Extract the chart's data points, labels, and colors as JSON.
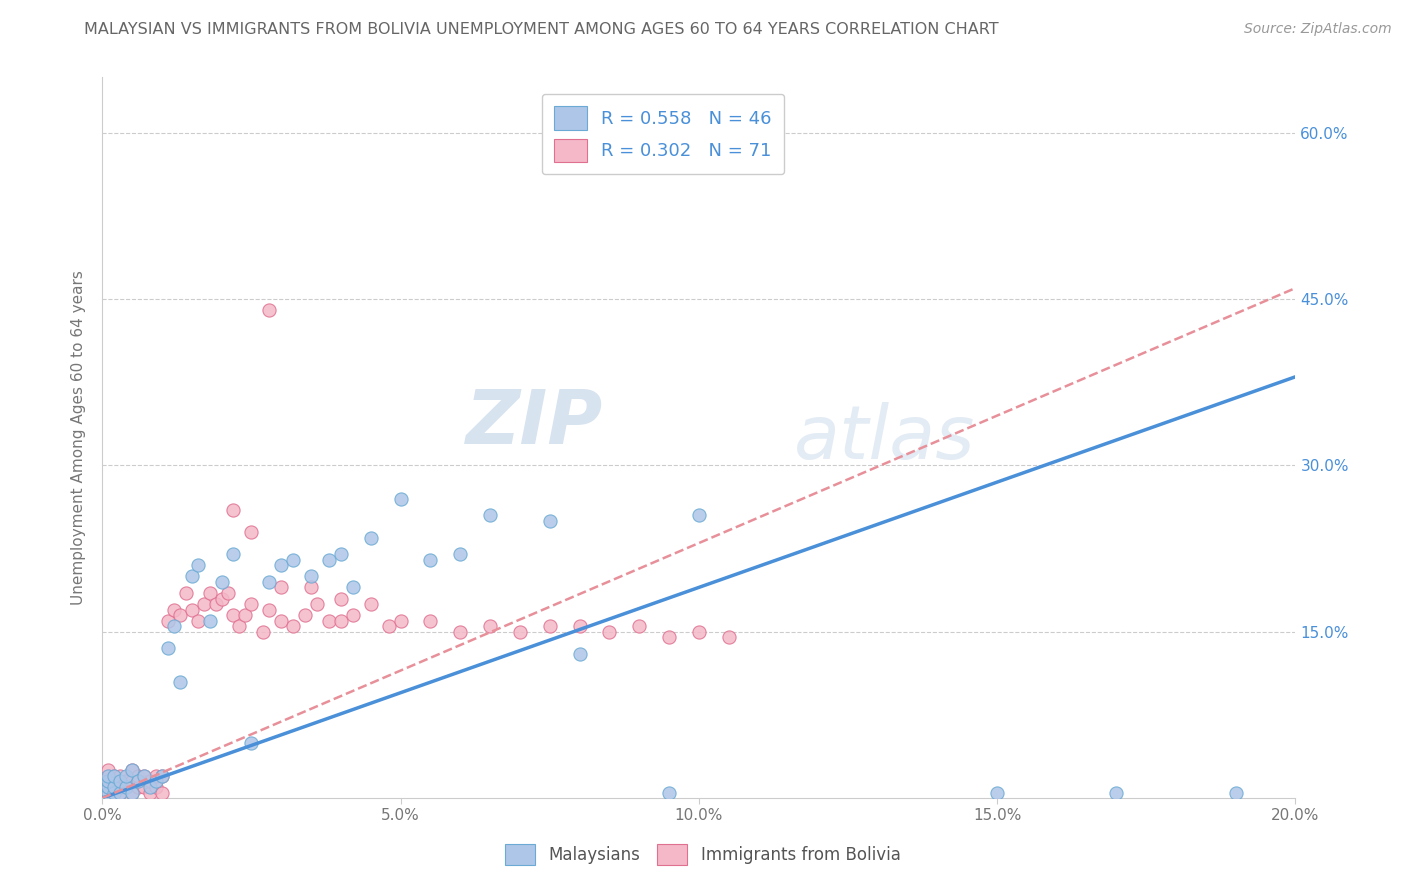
{
  "title": "MALAYSIAN VS IMMIGRANTS FROM BOLIVIA UNEMPLOYMENT AMONG AGES 60 TO 64 YEARS CORRELATION CHART",
  "source": "Source: ZipAtlas.com",
  "ylabel": "Unemployment Among Ages 60 to 64 years",
  "xlim": [
    0.0,
    0.2
  ],
  "ylim": [
    0.0,
    0.65
  ],
  "xticks": [
    0.0,
    0.05,
    0.1,
    0.15,
    0.2
  ],
  "xtick_labels": [
    "0.0%",
    "5.0%",
    "10.0%",
    "15.0%",
    "20.0%"
  ],
  "ytick_labels_right": [
    "15.0%",
    "30.0%",
    "45.0%",
    "60.0%"
  ],
  "yticks_right": [
    0.15,
    0.3,
    0.45,
    0.6
  ],
  "blue_color": "#aec6e8",
  "pink_color": "#f4b8c8",
  "blue_edge_color": "#6aaad4",
  "pink_edge_color": "#e07090",
  "blue_line_color": "#4a90d9",
  "pink_line_color": "#e8909a",
  "legend_text_color": "#4a90d9",
  "grid_color": "#cccccc",
  "title_color": "#666666",
  "watermark_color": "#c8d8ea",
  "blue_scatter_x": [
    0.001,
    0.001,
    0.001,
    0.001,
    0.002,
    0.002,
    0.002,
    0.003,
    0.003,
    0.004,
    0.004,
    0.005,
    0.005,
    0.006,
    0.007,
    0.008,
    0.009,
    0.01,
    0.011,
    0.012,
    0.013,
    0.015,
    0.016,
    0.018,
    0.02,
    0.022,
    0.025,
    0.028,
    0.03,
    0.032,
    0.035,
    0.038,
    0.04,
    0.042,
    0.045,
    0.05,
    0.055,
    0.06,
    0.065,
    0.075,
    0.08,
    0.095,
    0.1,
    0.15,
    0.17,
    0.19
  ],
  "blue_scatter_y": [
    0.005,
    0.01,
    0.015,
    0.02,
    0.005,
    0.01,
    0.02,
    0.005,
    0.015,
    0.01,
    0.02,
    0.005,
    0.025,
    0.015,
    0.02,
    0.01,
    0.015,
    0.02,
    0.135,
    0.155,
    0.105,
    0.2,
    0.21,
    0.16,
    0.195,
    0.22,
    0.05,
    0.195,
    0.21,
    0.215,
    0.2,
    0.215,
    0.22,
    0.19,
    0.235,
    0.27,
    0.215,
    0.22,
    0.255,
    0.25,
    0.13,
    0.005,
    0.255,
    0.005,
    0.005,
    0.005
  ],
  "pink_scatter_x": [
    0.001,
    0.001,
    0.001,
    0.001,
    0.001,
    0.002,
    0.002,
    0.002,
    0.002,
    0.003,
    0.003,
    0.003,
    0.004,
    0.004,
    0.005,
    0.005,
    0.005,
    0.006,
    0.006,
    0.007,
    0.007,
    0.008,
    0.008,
    0.009,
    0.009,
    0.01,
    0.01,
    0.011,
    0.012,
    0.013,
    0.014,
    0.015,
    0.016,
    0.017,
    0.018,
    0.019,
    0.02,
    0.021,
    0.022,
    0.023,
    0.024,
    0.025,
    0.027,
    0.028,
    0.03,
    0.032,
    0.034,
    0.036,
    0.038,
    0.04,
    0.042,
    0.045,
    0.048,
    0.05,
    0.055,
    0.06,
    0.065,
    0.07,
    0.075,
    0.08,
    0.085,
    0.09,
    0.095,
    0.1,
    0.105,
    0.03,
    0.035,
    0.04,
    0.028,
    0.025,
    0.022
  ],
  "pink_scatter_y": [
    0.005,
    0.01,
    0.015,
    0.02,
    0.025,
    0.005,
    0.01,
    0.015,
    0.02,
    0.005,
    0.01,
    0.02,
    0.01,
    0.015,
    0.005,
    0.015,
    0.025,
    0.01,
    0.02,
    0.01,
    0.02,
    0.005,
    0.015,
    0.01,
    0.02,
    0.005,
    0.02,
    0.16,
    0.17,
    0.165,
    0.185,
    0.17,
    0.16,
    0.175,
    0.185,
    0.175,
    0.18,
    0.185,
    0.165,
    0.155,
    0.165,
    0.175,
    0.15,
    0.17,
    0.16,
    0.155,
    0.165,
    0.175,
    0.16,
    0.16,
    0.165,
    0.175,
    0.155,
    0.16,
    0.16,
    0.15,
    0.155,
    0.15,
    0.155,
    0.155,
    0.15,
    0.155,
    0.145,
    0.15,
    0.145,
    0.19,
    0.19,
    0.18,
    0.44,
    0.24,
    0.26
  ],
  "blue_trend_x0": 0.0,
  "blue_trend_x1": 0.2,
  "blue_trend_y0": 0.0,
  "blue_trend_y1": 0.38,
  "pink_trend_x0": 0.0,
  "pink_trend_x1": 0.2,
  "pink_trend_y0": 0.0,
  "pink_trend_y1": 0.46
}
